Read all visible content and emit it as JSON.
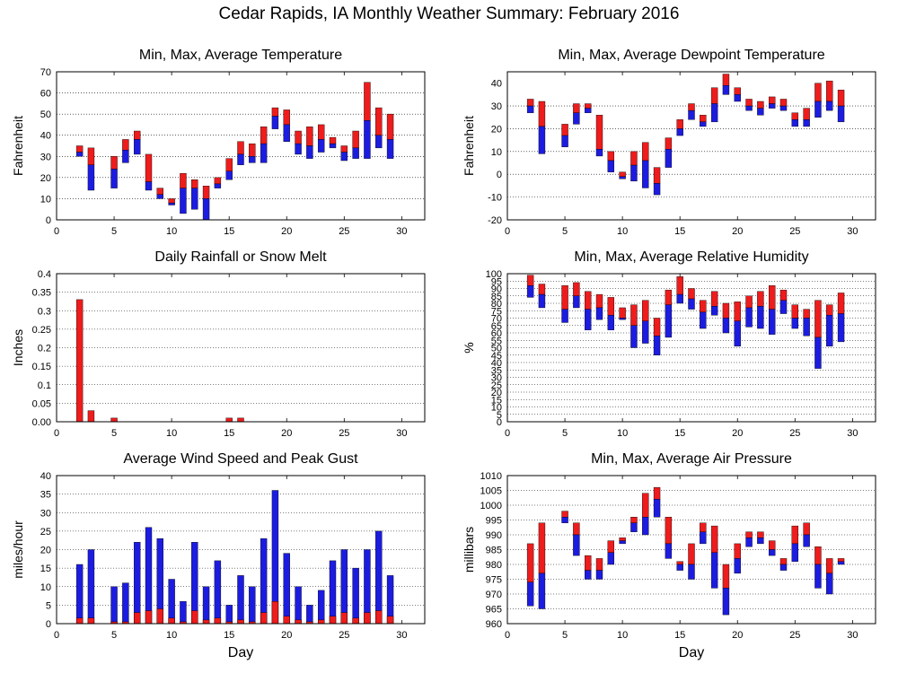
{
  "page_title": "Cedar Rapids, IA Monthly Weather Summary: February 2016",
  "colors": {
    "upper_bar": "#ee1c1c",
    "lower_bar": "#1c1ce0",
    "frame": "#000000",
    "grid": "#000000"
  },
  "chart_data": [
    {
      "id": "temperature",
      "type": "bar",
      "style": "floating-range",
      "title": "Min, Max, Average Temperature",
      "xlabel": "",
      "ylabel": "Fahrenheit",
      "xlim": [
        0,
        32
      ],
      "xticks": [
        0,
        5,
        10,
        15,
        20,
        25,
        30
      ],
      "ylim": [
        0,
        70
      ],
      "yticks": [
        0,
        10,
        20,
        30,
        40,
        50,
        60,
        70
      ],
      "ytick_labels": [
        "0",
        "10",
        "20",
        "30",
        "40",
        "50",
        "60",
        "70"
      ],
      "series": [
        {
          "day": 2,
          "min": 30,
          "avg": 32,
          "max": 35
        },
        {
          "day": 3,
          "min": 14,
          "avg": 26,
          "max": 34
        },
        {
          "day": 5,
          "min": 15,
          "avg": 24,
          "max": 30
        },
        {
          "day": 6,
          "min": 27,
          "avg": 33,
          "max": 38
        },
        {
          "day": 7,
          "min": 31,
          "avg": 38,
          "max": 42
        },
        {
          "day": 8,
          "min": 14,
          "avg": 18,
          "max": 31
        },
        {
          "day": 9,
          "min": 10,
          "avg": 12,
          "max": 15
        },
        {
          "day": 10,
          "min": 7,
          "avg": 8,
          "max": 10
        },
        {
          "day": 11,
          "min": 3,
          "avg": 15,
          "max": 22
        },
        {
          "day": 12,
          "min": 5,
          "avg": 15,
          "max": 19
        },
        {
          "day": 13,
          "min": 0,
          "avg": 10,
          "max": 16
        },
        {
          "day": 14,
          "min": 15,
          "avg": 17,
          "max": 20
        },
        {
          "day": 15,
          "min": 19,
          "avg": 23,
          "max": 29
        },
        {
          "day": 16,
          "min": 26,
          "avg": 31,
          "max": 37
        },
        {
          "day": 17,
          "min": 27,
          "avg": 30,
          "max": 36
        },
        {
          "day": 18,
          "min": 27,
          "avg": 36,
          "max": 44
        },
        {
          "day": 19,
          "min": 43,
          "avg": 49,
          "max": 53
        },
        {
          "day": 20,
          "min": 37,
          "avg": 45,
          "max": 52
        },
        {
          "day": 21,
          "min": 31,
          "avg": 36,
          "max": 42
        },
        {
          "day": 22,
          "min": 29,
          "avg": 35,
          "max": 44
        },
        {
          "day": 23,
          "min": 32,
          "avg": 38,
          "max": 45
        },
        {
          "day": 24,
          "min": 34,
          "avg": 36,
          "max": 39
        },
        {
          "day": 25,
          "min": 28,
          "avg": 32,
          "max": 35
        },
        {
          "day": 26,
          "min": 29,
          "avg": 34,
          "max": 42
        },
        {
          "day": 27,
          "min": 29,
          "avg": 47,
          "max": 65
        },
        {
          "day": 28,
          "min": 34,
          "avg": 40,
          "max": 53
        },
        {
          "day": 29,
          "min": 29,
          "avg": 38,
          "max": 50
        }
      ]
    },
    {
      "id": "dewpoint",
      "type": "bar",
      "style": "floating-range",
      "title": "Min, Max, Average Dewpoint Temperature",
      "xlabel": "",
      "ylabel": "Fahrenheit",
      "xlim": [
        0,
        32
      ],
      "xticks": [
        0,
        5,
        10,
        15,
        20,
        25,
        30
      ],
      "ylim": [
        -20,
        45
      ],
      "yticks": [
        -20,
        -10,
        0,
        10,
        20,
        30,
        40
      ],
      "ytick_labels": [
        "-20",
        "-10",
        "0",
        "10",
        "20",
        "30",
        "40"
      ],
      "series": [
        {
          "day": 2,
          "min": 27,
          "avg": 30,
          "max": 33
        },
        {
          "day": 3,
          "min": 9,
          "avg": 21,
          "max": 32
        },
        {
          "day": 5,
          "min": 12,
          "avg": 17,
          "max": 22
        },
        {
          "day": 6,
          "min": 22,
          "avg": 27,
          "max": 31
        },
        {
          "day": 7,
          "min": 27,
          "avg": 29,
          "max": 31
        },
        {
          "day": 8,
          "min": 8,
          "avg": 11,
          "max": 26
        },
        {
          "day": 9,
          "min": 1,
          "avg": 6,
          "max": 10
        },
        {
          "day": 10,
          "min": -2,
          "avg": -1,
          "max": 1
        },
        {
          "day": 11,
          "min": -3,
          "avg": 4,
          "max": 10
        },
        {
          "day": 12,
          "min": -6,
          "avg": 6,
          "max": 14
        },
        {
          "day": 13,
          "min": -9,
          "avg": -4,
          "max": 3
        },
        {
          "day": 14,
          "min": 3,
          "avg": 11,
          "max": 16
        },
        {
          "day": 15,
          "min": 17,
          "avg": 20,
          "max": 24
        },
        {
          "day": 16,
          "min": 24,
          "avg": 28,
          "max": 31
        },
        {
          "day": 17,
          "min": 21,
          "avg": 23,
          "max": 26
        },
        {
          "day": 18,
          "min": 23,
          "avg": 31,
          "max": 38
        },
        {
          "day": 19,
          "min": 35,
          "avg": 39,
          "max": 44
        },
        {
          "day": 20,
          "min": 32,
          "avg": 35,
          "max": 38
        },
        {
          "day": 21,
          "min": 28,
          "avg": 30,
          "max": 33
        },
        {
          "day": 22,
          "min": 26,
          "avg": 29,
          "max": 32
        },
        {
          "day": 23,
          "min": 29,
          "avg": 31,
          "max": 34
        },
        {
          "day": 24,
          "min": 28,
          "avg": 30,
          "max": 33
        },
        {
          "day": 25,
          "min": 21,
          "avg": 24,
          "max": 27
        },
        {
          "day": 26,
          "min": 21,
          "avg": 24,
          "max": 29
        },
        {
          "day": 27,
          "min": 25,
          "avg": 32,
          "max": 40
        },
        {
          "day": 28,
          "min": 28,
          "avg": 32,
          "max": 41
        },
        {
          "day": 29,
          "min": 23,
          "avg": 30,
          "max": 37
        }
      ]
    },
    {
      "id": "rainfall",
      "type": "bar",
      "style": "simple",
      "title": "Daily Rainfall or Snow Melt",
      "xlabel": "",
      "ylabel": "Inches",
      "xlim": [
        0,
        32
      ],
      "xticks": [
        0,
        5,
        10,
        15,
        20,
        25,
        30
      ],
      "ylim": [
        0,
        0.4
      ],
      "yticks": [
        0,
        0.05,
        0.1,
        0.15,
        0.2,
        0.25,
        0.3,
        0.35,
        0.4
      ],
      "ytick_labels": [
        "0.00",
        "0.05",
        "0.1",
        "0.15",
        "0.2",
        "0.25",
        "0.3",
        "0.35",
        "0.4"
      ],
      "series": [
        {
          "day": 2,
          "value": 0.33
        },
        {
          "day": 3,
          "value": 0.03
        },
        {
          "day": 5,
          "value": 0.01
        },
        {
          "day": 15,
          "value": 0.01
        },
        {
          "day": 16,
          "value": 0.01
        }
      ]
    },
    {
      "id": "humidity",
      "type": "bar",
      "style": "floating-range",
      "title": "Min, Max, Average Relative Humidity",
      "xlabel": "",
      "ylabel": "%",
      "xlim": [
        0,
        32
      ],
      "xticks": [
        0,
        5,
        10,
        15,
        20,
        25,
        30
      ],
      "ylim": [
        0,
        100
      ],
      "yticks": [
        0,
        5,
        10,
        15,
        20,
        25,
        30,
        35,
        40,
        45,
        50,
        55,
        60,
        65,
        70,
        75,
        80,
        85,
        90,
        95,
        100
      ],
      "ytick_labels": [
        "0",
        "5",
        "10",
        "15",
        "20",
        "25",
        "30",
        "35",
        "40",
        "45",
        "50",
        "55",
        "60",
        "65",
        "70",
        "75",
        "80",
        "85",
        "90",
        "95",
        "100"
      ],
      "series": [
        {
          "day": 2,
          "min": 84,
          "avg": 92,
          "max": 99
        },
        {
          "day": 3,
          "min": 77,
          "avg": 86,
          "max": 93
        },
        {
          "day": 5,
          "min": 67,
          "avg": 76,
          "max": 92
        },
        {
          "day": 6,
          "min": 77,
          "avg": 85,
          "max": 94
        },
        {
          "day": 7,
          "min": 62,
          "avg": 76,
          "max": 88
        },
        {
          "day": 8,
          "min": 69,
          "avg": 77,
          "max": 86
        },
        {
          "day": 9,
          "min": 62,
          "avg": 72,
          "max": 84
        },
        {
          "day": 10,
          "min": 69,
          "avg": 70,
          "max": 77
        },
        {
          "day": 11,
          "min": 50,
          "avg": 65,
          "max": 79
        },
        {
          "day": 12,
          "min": 53,
          "avg": 68,
          "max": 82
        },
        {
          "day": 13,
          "min": 45,
          "avg": 58,
          "max": 70
        },
        {
          "day": 14,
          "min": 57,
          "avg": 79,
          "max": 89
        },
        {
          "day": 15,
          "min": 80,
          "avg": 86,
          "max": 98
        },
        {
          "day": 16,
          "min": 76,
          "avg": 83,
          "max": 90
        },
        {
          "day": 17,
          "min": 63,
          "avg": 74,
          "max": 82
        },
        {
          "day": 18,
          "min": 72,
          "avg": 78,
          "max": 88
        },
        {
          "day": 19,
          "min": 60,
          "avg": 70,
          "max": 80
        },
        {
          "day": 20,
          "min": 51,
          "avg": 68,
          "max": 81
        },
        {
          "day": 21,
          "min": 64,
          "avg": 77,
          "max": 85
        },
        {
          "day": 22,
          "min": 63,
          "avg": 78,
          "max": 88
        },
        {
          "day": 23,
          "min": 59,
          "avg": 76,
          "max": 92
        },
        {
          "day": 24,
          "min": 73,
          "avg": 82,
          "max": 89
        },
        {
          "day": 25,
          "min": 63,
          "avg": 70,
          "max": 79
        },
        {
          "day": 26,
          "min": 58,
          "avg": 70,
          "max": 76
        },
        {
          "day": 27,
          "min": 36,
          "avg": 57,
          "max": 82
        },
        {
          "day": 28,
          "min": 51,
          "avg": 72,
          "max": 79
        },
        {
          "day": 29,
          "min": 54,
          "avg": 73,
          "max": 87
        }
      ]
    },
    {
      "id": "wind",
      "type": "bar",
      "style": "wind",
      "title": "Average Wind Speed and Peak Gust",
      "xlabel": "Day",
      "ylabel": "miles/hour",
      "xlim": [
        0,
        32
      ],
      "xticks": [
        0,
        5,
        10,
        15,
        20,
        25,
        30
      ],
      "ylim": [
        0,
        40
      ],
      "yticks": [
        0,
        5,
        10,
        15,
        20,
        25,
        30,
        35,
        40
      ],
      "ytick_labels": [
        "0",
        "5",
        "10",
        "15",
        "20",
        "25",
        "30",
        "35",
        "40"
      ],
      "series": [
        {
          "day": 2,
          "avg": 1.5,
          "gust": 16
        },
        {
          "day": 3,
          "avg": 1.5,
          "gust": 20
        },
        {
          "day": 5,
          "avg": 0.5,
          "gust": 10
        },
        {
          "day": 6,
          "avg": 0.5,
          "gust": 11
        },
        {
          "day": 7,
          "avg": 3,
          "gust": 22
        },
        {
          "day": 8,
          "avg": 3.5,
          "gust": 26
        },
        {
          "day": 9,
          "avg": 4,
          "gust": 23
        },
        {
          "day": 10,
          "avg": 1.5,
          "gust": 12
        },
        {
          "day": 11,
          "avg": 0.5,
          "gust": 6
        },
        {
          "day": 12,
          "avg": 3.5,
          "gust": 22
        },
        {
          "day": 13,
          "avg": 1,
          "gust": 10
        },
        {
          "day": 14,
          "avg": 1.5,
          "gust": 17
        },
        {
          "day": 15,
          "avg": 0.5,
          "gust": 5
        },
        {
          "day": 16,
          "avg": 1,
          "gust": 13
        },
        {
          "day": 17,
          "avg": 0.5,
          "gust": 10
        },
        {
          "day": 18,
          "avg": 3,
          "gust": 23
        },
        {
          "day": 19,
          "avg": 6,
          "gust": 36
        },
        {
          "day": 20,
          "avg": 2,
          "gust": 19
        },
        {
          "day": 21,
          "avg": 1,
          "gust": 10
        },
        {
          "day": 22,
          "avg": 0.5,
          "gust": 5
        },
        {
          "day": 23,
          "avg": 1,
          "gust": 9
        },
        {
          "day": 24,
          "avg": 2,
          "gust": 17
        },
        {
          "day": 25,
          "avg": 3,
          "gust": 20
        },
        {
          "day": 26,
          "avg": 1.5,
          "gust": 15
        },
        {
          "day": 27,
          "avg": 3,
          "gust": 20
        },
        {
          "day": 28,
          "avg": 3.5,
          "gust": 25
        },
        {
          "day": 29,
          "avg": 2,
          "gust": 13
        }
      ]
    },
    {
      "id": "pressure",
      "type": "bar",
      "style": "floating-range",
      "title": "Min, Max, Average Air Pressure",
      "xlabel": "Day",
      "ylabel": "millibars",
      "xlim": [
        0,
        32
      ],
      "xticks": [
        0,
        5,
        10,
        15,
        20,
        25,
        30
      ],
      "ylim": [
        960,
        1010
      ],
      "yticks": [
        960,
        965,
        970,
        975,
        980,
        985,
        990,
        995,
        1000,
        1005,
        1010
      ],
      "ytick_labels": [
        "960",
        "965",
        "970",
        "975",
        "980",
        "985",
        "990",
        "995",
        "1000",
        "1005",
        "1010"
      ],
      "series": [
        {
          "day": 2,
          "min": 966,
          "avg": 974,
          "max": 987
        },
        {
          "day": 3,
          "min": 965,
          "avg": 977,
          "max": 994
        },
        {
          "day": 5,
          "min": 994,
          "avg": 996,
          "max": 998
        },
        {
          "day": 6,
          "min": 983,
          "avg": 990,
          "max": 994
        },
        {
          "day": 7,
          "min": 975,
          "avg": 978,
          "max": 983
        },
        {
          "day": 8,
          "min": 975,
          "avg": 978,
          "max": 982
        },
        {
          "day": 9,
          "min": 980,
          "avg": 984,
          "max": 988
        },
        {
          "day": 10,
          "min": 987,
          "avg": 988,
          "max": 989
        },
        {
          "day": 11,
          "min": 991,
          "avg": 994,
          "max": 996
        },
        {
          "day": 12,
          "min": 990,
          "avg": 996,
          "max": 1004
        },
        {
          "day": 13,
          "min": 996,
          "avg": 1002,
          "max": 1006
        },
        {
          "day": 14,
          "min": 982,
          "avg": 987,
          "max": 996
        },
        {
          "day": 15,
          "min": 978,
          "avg": 980,
          "max": 981
        },
        {
          "day": 16,
          "min": 975,
          "avg": 980,
          "max": 987
        },
        {
          "day": 17,
          "min": 987,
          "avg": 991,
          "max": 994
        },
        {
          "day": 18,
          "min": 972,
          "avg": 984,
          "max": 993
        },
        {
          "day": 19,
          "min": 963,
          "avg": 972,
          "max": 980
        },
        {
          "day": 20,
          "min": 977,
          "avg": 982,
          "max": 987
        },
        {
          "day": 21,
          "min": 986,
          "avg": 989,
          "max": 991
        },
        {
          "day": 22,
          "min": 987,
          "avg": 989,
          "max": 991
        },
        {
          "day": 23,
          "min": 983,
          "avg": 985,
          "max": 988
        },
        {
          "day": 24,
          "min": 978,
          "avg": 980,
          "max": 982
        },
        {
          "day": 25,
          "min": 981,
          "avg": 987,
          "max": 993
        },
        {
          "day": 26,
          "min": 986,
          "avg": 990,
          "max": 994
        },
        {
          "day": 27,
          "min": 972,
          "avg": 980,
          "max": 986
        },
        {
          "day": 28,
          "min": 970,
          "avg": 977,
          "max": 982
        },
        {
          "day": 29,
          "min": 980,
          "avg": 981,
          "max": 982
        }
      ]
    }
  ]
}
